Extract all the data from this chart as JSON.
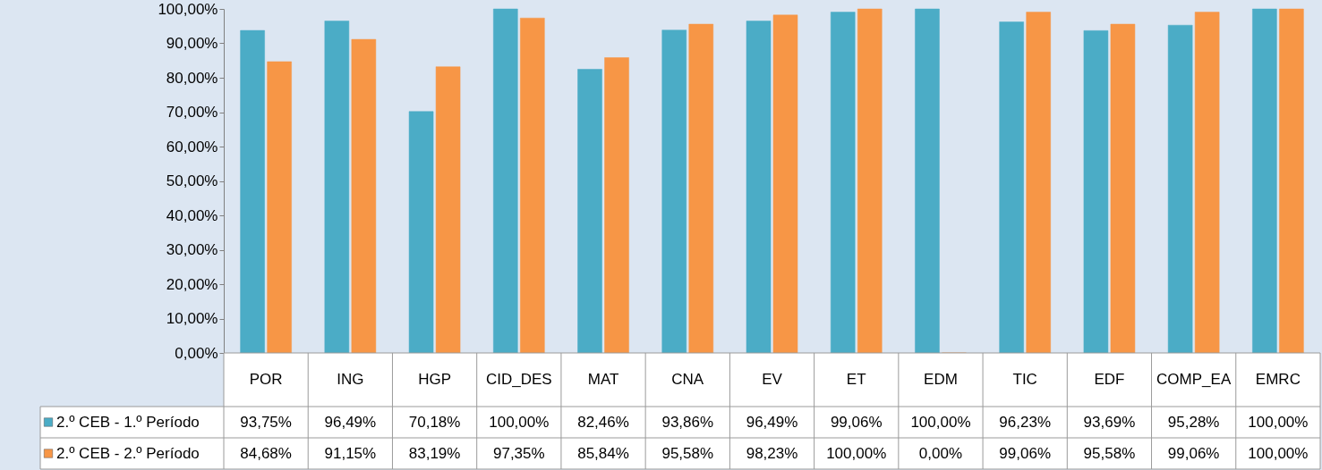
{
  "chart_data": {
    "type": "bar",
    "categories": [
      "POR",
      "ING",
      "HGP",
      "CID_DES",
      "MAT",
      "CNA",
      "EV",
      "ET",
      "EDM",
      "TIC",
      "EDF",
      "COMP_EA",
      "EMRC"
    ],
    "series": [
      {
        "name": "2.º CEB - 1.º Período",
        "color": "#4bacc6",
        "values": [
          93.75,
          96.49,
          70.18,
          100.0,
          82.46,
          93.86,
          96.49,
          99.06,
          100.0,
          96.23,
          93.69,
          95.28,
          100.0
        ],
        "value_labels": [
          "93,75%",
          "96,49%",
          "70,18%",
          "100,00%",
          "82,46%",
          "93,86%",
          "96,49%",
          "99,06%",
          "100,00%",
          "96,23%",
          "93,69%",
          "95,28%",
          "100,00%"
        ]
      },
      {
        "name": "2.º CEB - 2.º Período",
        "color": "#f79646",
        "values": [
          84.68,
          91.15,
          83.19,
          97.35,
          85.84,
          95.58,
          98.23,
          100.0,
          0.0,
          99.06,
          95.58,
          99.06,
          100.0
        ],
        "value_labels": [
          "84,68%",
          "91,15%",
          "83,19%",
          "97,35%",
          "85,84%",
          "95,58%",
          "98,23%",
          "100,00%",
          "0,00%",
          "99,06%",
          "95,58%",
          "99,06%",
          "100,00%"
        ]
      }
    ],
    "ylim": [
      0,
      100
    ],
    "yticks": [
      {
        "value": 0,
        "label": "0,00%"
      },
      {
        "value": 10,
        "label": "10,00%"
      },
      {
        "value": 20,
        "label": "20,00%"
      },
      {
        "value": 30,
        "label": "30,00%"
      },
      {
        "value": 40,
        "label": "40,00%"
      },
      {
        "value": 50,
        "label": "50,00%"
      },
      {
        "value": 60,
        "label": "60,00%"
      },
      {
        "value": 70,
        "label": "70,00%"
      },
      {
        "value": 80,
        "label": "80,00%"
      },
      {
        "value": 90,
        "label": "90,00%"
      },
      {
        "value": 100,
        "label": "100,00%"
      }
    ],
    "grid": false,
    "legend": "bottom"
  }
}
